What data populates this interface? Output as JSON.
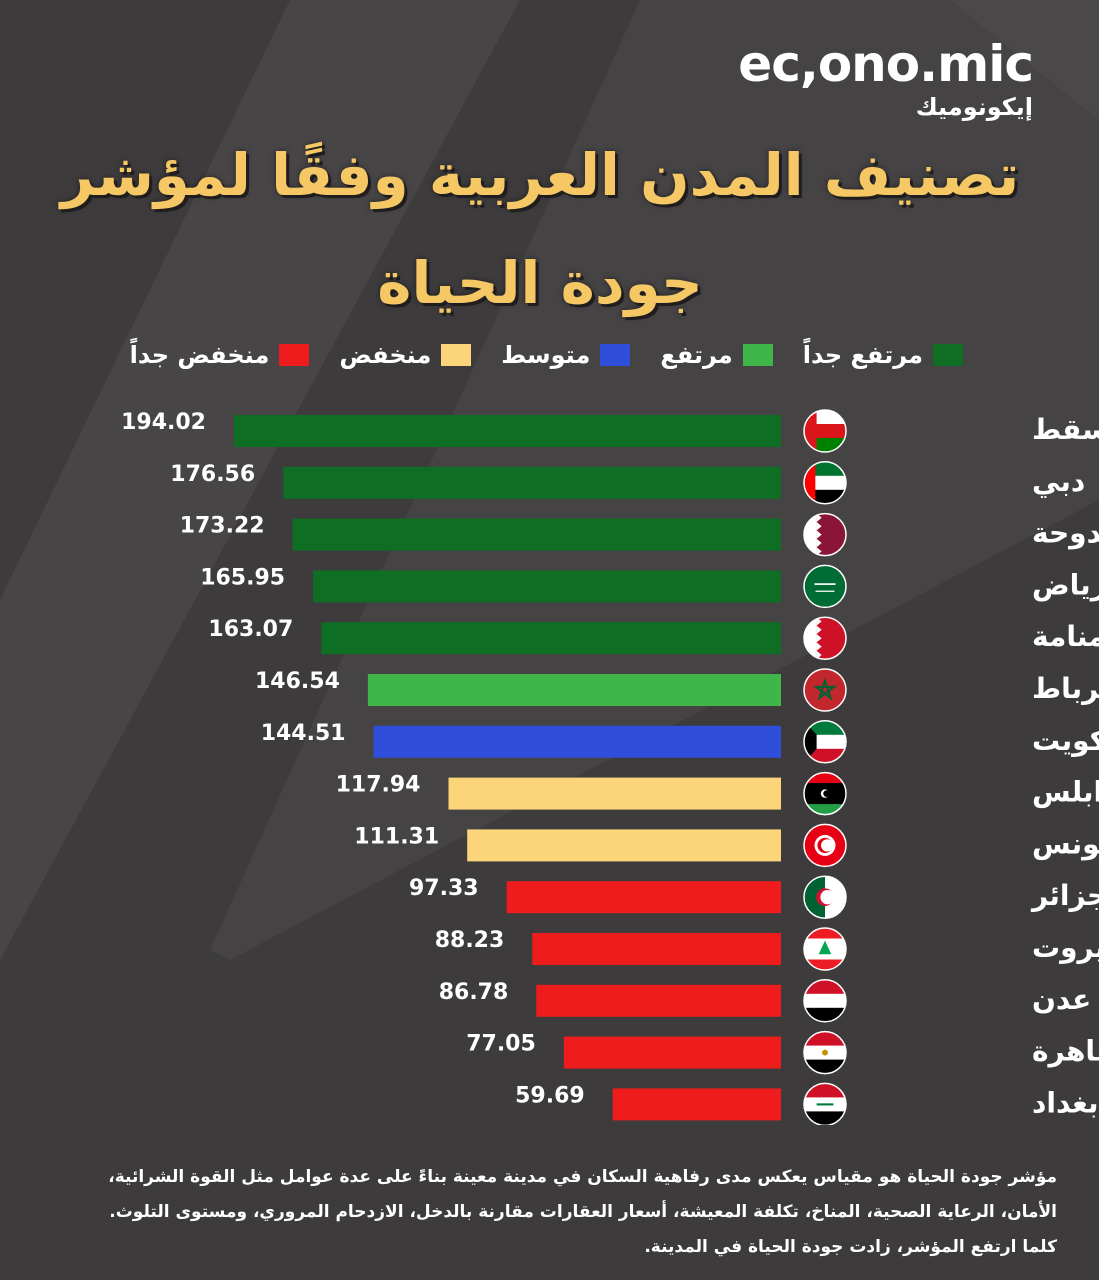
{
  "brand": {
    "latin": "ec,ono.mic",
    "arabic": "إيكونوميك"
  },
  "title_line1": "تصنيف المدن العربية وفقًا لمؤشر",
  "title_line2": "جودة الحياة",
  "legend": [
    {
      "label": "مرتفع جداً",
      "color": "#0e6e24"
    },
    {
      "label": "مرتفع",
      "color": "#3fb54a"
    },
    {
      "label": "متوسط",
      "color": "#2f4fdb"
    },
    {
      "label": "منخفض",
      "color": "#fcd479"
    },
    {
      "label": "منخفض جداً",
      "color": "#ee1c1c"
    }
  ],
  "note": "مؤشر جودة الحياة هو مقياس يعكس مدى رفاهية السكان في مدينة معينة بناءً على عدة عوامل مثل القوة الشرائية، الأمان، الرعاية الصحية، المناخ، تكلفة المعيشة، أسعار العقارات مقارنة بالدخل، الازدحام المروري، ومستوى التلوث. كلما ارتفع المؤشر، زادت جودة الحياة في المدينة.",
  "chart_data": {
    "type": "bar",
    "orientation": "horizontal",
    "title": "تصنيف المدن العربية وفقًا لمؤشر جودة الحياة",
    "categories": [
      "مسقط",
      "دبي",
      "الدوحة",
      "الرياض",
      "المنامة",
      "الرباط",
      "الكويت",
      "طرابلس",
      "تونس",
      "الجزائر",
      "بيروت",
      "عدن",
      "القاهرة",
      "بغداد"
    ],
    "values": [
      194.02,
      176.56,
      173.22,
      165.95,
      163.07,
      146.54,
      144.51,
      117.94,
      111.31,
      97.33,
      88.23,
      86.78,
      77.05,
      59.69
    ],
    "value_labels": [
      "194.02",
      "176.56",
      "173.22",
      "165.95",
      "163.07",
      "146.54",
      "144.51",
      "117.94",
      "111.31",
      "97.33",
      "88.23",
      "86.78",
      "77.05",
      "59.69"
    ],
    "levels": [
      "مرتفع جداً",
      "مرتفع جداً",
      "مرتفع جداً",
      "مرتفع جداً",
      "مرتفع جداً",
      "مرتفع",
      "متوسط",
      "منخفض",
      "منخفض",
      "منخفض جداً",
      "منخفض جداً",
      "منخفض جداً",
      "منخفض جداً",
      "منخفض جداً"
    ],
    "flag_icons": [
      "oman-flag-icon",
      "uae-flag-icon",
      "qatar-flag-icon",
      "saudi-flag-icon",
      "bahrain-flag-icon",
      "morocco-flag-icon",
      "kuwait-flag-icon",
      "libya-flag-icon",
      "tunisia-flag-icon",
      "algeria-flag-icon",
      "lebanon-flag-icon",
      "yemen-flag-icon",
      "egypt-flag-icon",
      "iraq-flag-icon"
    ],
    "xlim": [
      0,
      194.02
    ],
    "grid": false,
    "legend_position": "top"
  }
}
